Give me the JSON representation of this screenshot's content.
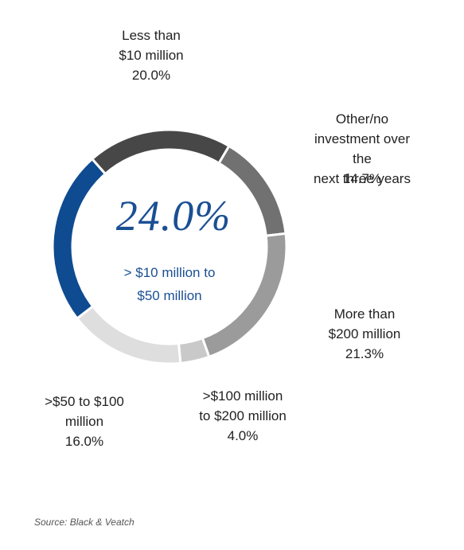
{
  "chart_data": {
    "type": "donut",
    "categories": [
      "Less than\n$10 million",
      "Other/no\ninvestment over the\nnext three years",
      "More than\n$200 million",
      ">$100 million\nto $200 million",
      ">$50 to $100\nmillion",
      "> $10 million to\n$50 million"
    ],
    "values": [
      20.0,
      14.7,
      21.3,
      4.0,
      16.0,
      24.0
    ],
    "value_labels": [
      "20.0%",
      "14.7%",
      "21.3%",
      "4.0%",
      "16.0%",
      "24.0%"
    ],
    "colors": [
      "#474747",
      "#717171",
      "#9b9b9b",
      "#c9c9c9",
      "#dedede",
      "#0e4b90"
    ],
    "highlight": 5,
    "source": "Source: Black & Veatch"
  }
}
